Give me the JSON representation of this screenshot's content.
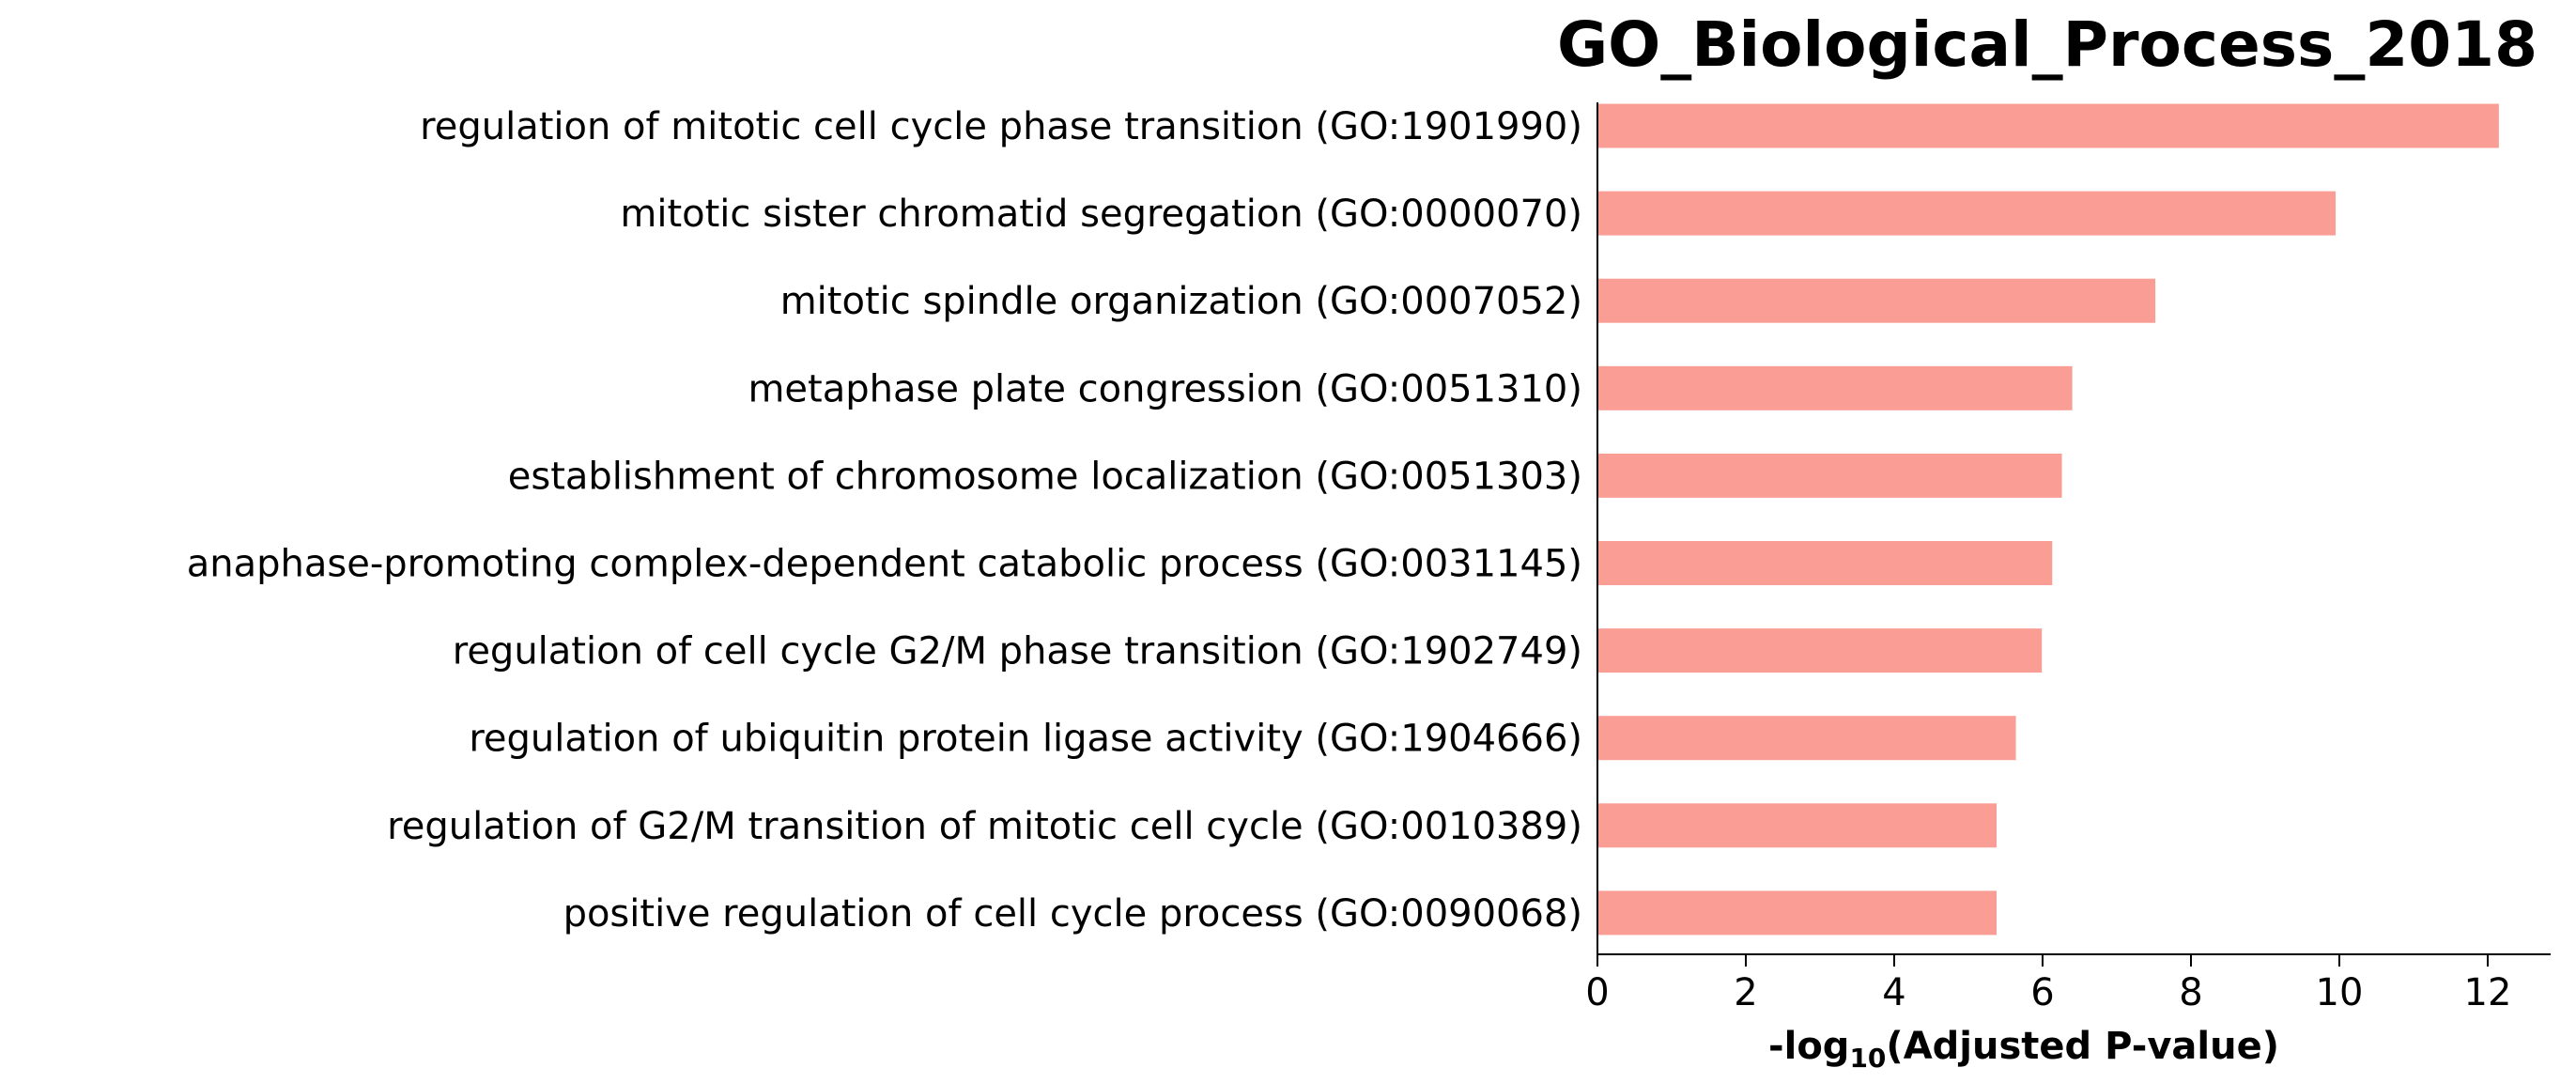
{
  "chart_data": {
    "type": "bar",
    "orientation": "horizontal",
    "title": "GO_Biological_Process_2018",
    "xlabel": {
      "prefix": "-log",
      "subscript": "10",
      "suffix": "(Adjusted P-value)"
    },
    "ylabel": "",
    "categories": [
      "regulation of mitotic cell cycle phase transition (GO:1901990)",
      "mitotic sister chromatid segregation (GO:0000070)",
      "mitotic spindle organization (GO:0007052)",
      "metaphase plate congression (GO:0051310)",
      "establishment of chromosome localization (GO:0051303)",
      "anaphase-promoting complex-dependent catabolic process (GO:0031145)",
      "regulation of cell cycle G2/M phase transition (GO:1902749)",
      "regulation of ubiquitin protein ligase activity (GO:1904666)",
      "regulation of G2/M transition of mitotic cell cycle (GO:0010389)",
      "positive regulation of cell cycle process (GO:0090068)"
    ],
    "values": [
      12.15,
      9.95,
      7.52,
      6.4,
      6.26,
      6.13,
      5.99,
      5.64,
      5.38,
      5.38
    ],
    "xlim": [
      0,
      12.75
    ],
    "xticks": [
      "0",
      "2",
      "4",
      "6",
      "8",
      "10",
      "12"
    ],
    "bar_color": "#fa9e95",
    "grid": false,
    "legend": "none"
  }
}
